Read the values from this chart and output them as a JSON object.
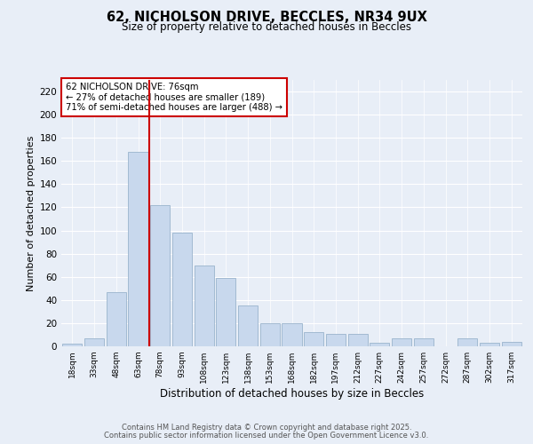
{
  "title1": "62, NICHOLSON DRIVE, BECCLES, NR34 9UX",
  "title2": "Size of property relative to detached houses in Beccles",
  "xlabel": "Distribution of detached houses by size in Beccles",
  "ylabel": "Number of detached properties",
  "bar_labels": [
    "18sqm",
    "33sqm",
    "48sqm",
    "63sqm",
    "78sqm",
    "93sqm",
    "108sqm",
    "123sqm",
    "138sqm",
    "153sqm",
    "168sqm",
    "182sqm",
    "197sqm",
    "212sqm",
    "227sqm",
    "242sqm",
    "257sqm",
    "272sqm",
    "287sqm",
    "302sqm",
    "317sqm"
  ],
  "bar_values": [
    2,
    7,
    47,
    168,
    122,
    98,
    70,
    59,
    35,
    20,
    20,
    12,
    11,
    11,
    3,
    7,
    7,
    0,
    7,
    3,
    4
  ],
  "bar_color": "#c8d8ed",
  "bar_edge_color": "#9ab4cc",
  "annotation_title": "62 NICHOLSON DRIVE: 76sqm",
  "annotation_line1": "← 27% of detached houses are smaller (189)",
  "annotation_line2": "71% of semi-detached houses are larger (488) →",
  "annotation_box_color": "#ffffff",
  "annotation_border_color": "#cc0000",
  "vline_color": "#cc0000",
  "ylim": [
    0,
    230
  ],
  "yticks": [
    0,
    20,
    40,
    60,
    80,
    100,
    120,
    140,
    160,
    180,
    200,
    220
  ],
  "background_color": "#e8eef7",
  "plot_bg_color": "#e8eef7",
  "footer1": "Contains HM Land Registry data © Crown copyright and database right 2025.",
  "footer2": "Contains public sector information licensed under the Open Government Licence v3.0."
}
